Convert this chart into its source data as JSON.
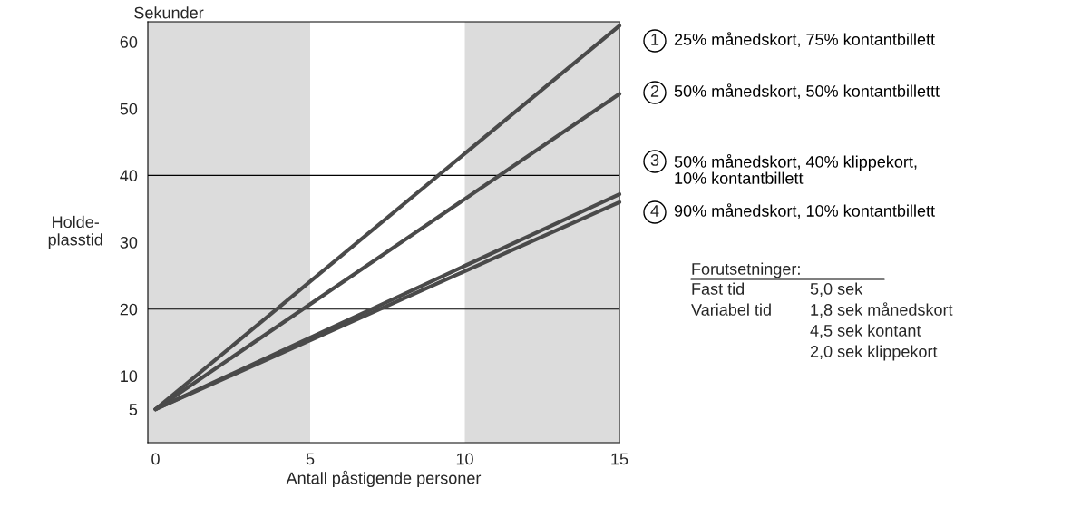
{
  "chart_data": {
    "type": "line",
    "xlabel": "Antall påstigende personer",
    "ylabel": "Holde-\nplasstid",
    "x": [
      0,
      15
    ],
    "xlim": [
      -0.25,
      15
    ],
    "xticks": [
      0,
      5,
      10,
      15
    ],
    "ylim": [
      0,
      63
    ],
    "yticks": [
      5,
      10,
      20,
      30,
      40,
      50,
      60
    ],
    "series": [
      {
        "name": "25% månedskort, 75% kontantbillett",
        "color": "#4a4a4a",
        "values": [
          5,
          62.4
        ]
      },
      {
        "name": "50% månedskort, 50% kontantbillettt",
        "color": "#4a4a4a",
        "values": [
          5,
          52.2
        ]
      },
      {
        "name": "50% månedskort, 40% klippekort,\n10% kontantbillett",
        "color": "#4a4a4a",
        "values": [
          5,
          37.2
        ]
      },
      {
        "name": "90% månedskort, 10% kontantbillett",
        "color": "#4a4a4a",
        "values": [
          5,
          36
        ]
      }
    ],
    "bands": [
      {
        "axis": "x",
        "from": -0.25,
        "to": 5,
        "color": "#dcdcdc"
      },
      {
        "axis": "x",
        "from": 10,
        "to": 15,
        "color": "#dcdcdc"
      }
    ],
    "ref_lines": [
      {
        "axis": "y",
        "value": 20,
        "color": "#000000"
      },
      {
        "axis": "y",
        "value": 40,
        "color": "#000000"
      }
    ],
    "annotations": [
      "Sekunder",
      "1",
      "2",
      "3",
      "4",
      "Forutsetninger:",
      "Fast tid",
      "5,0 sek",
      "Variabel tid",
      "1,8 sek månedskort",
      "4,5 sek kontant",
      "2,0 sek klippekort"
    ],
    "grid": false,
    "legend": false,
    "marker": "none",
    "line_style": "solid"
  }
}
